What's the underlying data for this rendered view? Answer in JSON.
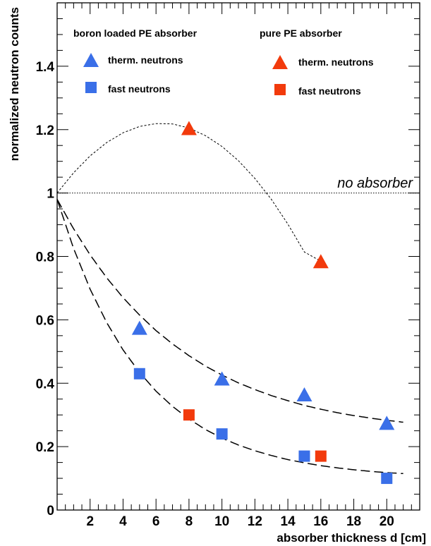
{
  "chart_data": {
    "type": "scatter",
    "title": "",
    "xlabel": "absorber thickness d [cm]",
    "ylabel": "normalized neutron counts",
    "xlim": [
      0,
      22
    ],
    "ylim": [
      0,
      1.6
    ],
    "x_ticks": [
      2,
      4,
      6,
      8,
      10,
      12,
      14,
      16,
      18,
      20
    ],
    "y_ticks": [
      0,
      0.2,
      0.4,
      0.6,
      0.8,
      1,
      1.2,
      1.4
    ],
    "y_tick_labels": [
      "0",
      "0.2",
      "0.4",
      "0.6",
      "0.8",
      "1",
      "1.2",
      "1.4"
    ],
    "legend_groups": [
      "boron loaded PE absorber",
      "pure PE absorber"
    ],
    "series": [
      {
        "name": "therm. neutrons",
        "group": "boron loaded PE absorber",
        "marker": "triangle",
        "color": "#3a6fe8",
        "x": [
          5,
          10,
          15,
          20
        ],
        "y": [
          0.575,
          0.415,
          0.365,
          0.275
        ]
      },
      {
        "name": "fast neutrons",
        "group": "boron loaded PE absorber",
        "marker": "square",
        "color": "#3a6fe8",
        "x": [
          5,
          10,
          15,
          20
        ],
        "y": [
          0.43,
          0.24,
          0.17,
          0.1
        ]
      },
      {
        "name": "therm. neutrons",
        "group": "pure PE absorber",
        "marker": "triangle",
        "color": "#f23a0c",
        "x": [
          8,
          16
        ],
        "y": [
          1.205,
          0.785
        ]
      },
      {
        "name": "fast neutrons",
        "group": "pure PE absorber",
        "marker": "square",
        "color": "#f23a0c",
        "x": [
          8,
          16
        ],
        "y": [
          0.3,
          0.17
        ]
      }
    ],
    "fit_curves": [
      {
        "style": "dashed",
        "x": [
          0,
          1,
          2,
          3,
          4,
          5,
          6,
          7,
          8,
          9,
          10,
          11,
          12,
          13,
          14,
          15,
          16,
          17,
          18,
          19,
          20,
          21
        ],
        "y": [
          0.98,
          0.887,
          0.805,
          0.733,
          0.67,
          0.615,
          0.566,
          0.524,
          0.487,
          0.454,
          0.426,
          0.401,
          0.38,
          0.361,
          0.345,
          0.33,
          0.318,
          0.307,
          0.298,
          0.29,
          0.283,
          0.277
        ]
      },
      {
        "style": "dashed",
        "x": [
          0,
          1,
          2,
          3,
          4,
          5,
          6,
          7,
          8,
          9,
          10,
          11,
          12,
          13,
          14,
          15,
          16,
          17,
          18,
          19,
          20,
          21
        ],
        "y": [
          0.98,
          0.825,
          0.697,
          0.592,
          0.505,
          0.434,
          0.375,
          0.327,
          0.287,
          0.254,
          0.227,
          0.205,
          0.187,
          0.172,
          0.159,
          0.149,
          0.14,
          0.133,
          0.127,
          0.122,
          0.118,
          0.115
        ]
      },
      {
        "style": "dotted",
        "x": [
          0,
          1,
          2,
          3,
          4,
          5,
          6,
          7,
          8,
          9,
          10,
          11,
          12,
          13,
          14,
          15,
          16
        ],
        "y": [
          1.0,
          1.064,
          1.117,
          1.159,
          1.19,
          1.21,
          1.219,
          1.218,
          1.205,
          1.181,
          1.147,
          1.102,
          1.046,
          0.98,
          0.902,
          0.814,
          0.785
        ]
      }
    ],
    "reference_line": {
      "y": 1.0,
      "label": "no absorber"
    },
    "grid": false,
    "legend_position": "top"
  }
}
